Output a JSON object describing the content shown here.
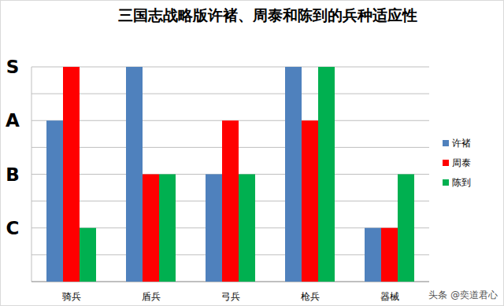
{
  "chart_data": {
    "type": "bar",
    "title": "三国志战略版许褚、周泰和陈到的兵种适应性",
    "categories": [
      "骑兵",
      "盾兵",
      "弓兵",
      "枪兵",
      "器械"
    ],
    "series": [
      {
        "name": "许褚",
        "color": "#4f81bd",
        "values": [
          6,
          8,
          4,
          8,
          2
        ]
      },
      {
        "name": "周泰",
        "color": "#ff0000",
        "values": [
          8,
          4,
          6,
          6,
          2
        ]
      },
      {
        "name": "陈到",
        "color": "#00b050",
        "values": [
          2,
          4,
          4,
          8,
          4
        ]
      }
    ],
    "ylim": [
      0,
      8
    ],
    "yticks": [
      {
        "value": 2,
        "label": "C"
      },
      {
        "value": 4,
        "label": "B"
      },
      {
        "value": 6,
        "label": "A"
      },
      {
        "value": 8,
        "label": "S"
      }
    ],
    "grid": true,
    "legend": "right",
    "annotations": [
      "头条 @奕道君心"
    ]
  }
}
